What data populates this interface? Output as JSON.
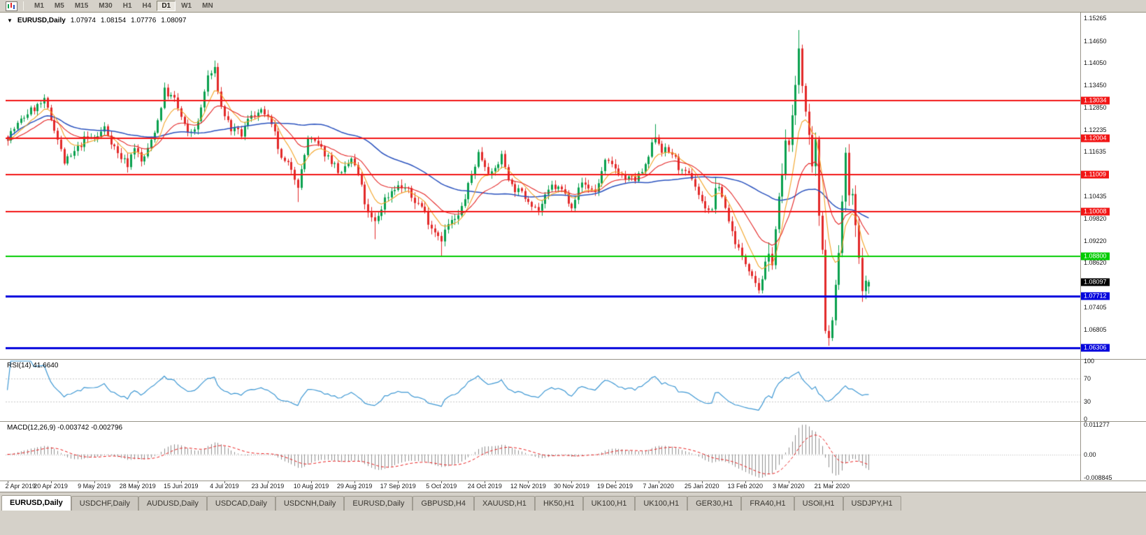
{
  "toolbar": {
    "timeframes": [
      "M1",
      "M5",
      "M15",
      "M30",
      "H1",
      "H4",
      "D1",
      "W1",
      "MN"
    ],
    "active_timeframe": "D1"
  },
  "ohlc_info": {
    "arrow": "▼",
    "symbol_period": "EURUSD,Daily",
    "open": "1.07974",
    "high": "1.08154",
    "low": "1.07776",
    "close": "1.08097"
  },
  "price_axis": {
    "regular_labels": [
      "1.15265",
      "1.14650",
      "1.14050",
      "1.13450",
      "1.12850",
      "1.12235",
      "1.11635",
      "1.10435",
      "1.09820",
      "1.09220",
      "1.08620",
      "1.07405",
      "1.06805"
    ],
    "current_price": "1.08097",
    "current_price_bg": "#000000"
  },
  "levels": [
    {
      "label": "1.13034",
      "price": 1.13034,
      "color": "#f21515",
      "width": 2
    },
    {
      "label": "1.12004",
      "price": 1.12004,
      "color": "#f21515",
      "width": 2
    },
    {
      "label": "1.11009",
      "price": 1.11009,
      "color": "#f21515",
      "width": 2
    },
    {
      "label": "1.10008",
      "price": 1.10008,
      "color": "#f21515",
      "width": 2
    },
    {
      "label": "1.08800",
      "price": 1.088,
      "color": "#00cc00",
      "width": 2
    },
    {
      "label": "1.07712",
      "price": 1.07712,
      "color": "#0404dd",
      "width": 3
    },
    {
      "label": "1.06306",
      "price": 1.06306,
      "color": "#0404dd",
      "width": 3
    }
  ],
  "date_axis": [
    "2 Apr 2019",
    "20 Apr 2019",
    "9 May 2019",
    "28 May 2019",
    "15 Jun 2019",
    "4 Jul 2019",
    "23 Jul 2019",
    "10 Aug 2019",
    "29 Aug 2019",
    "17 Sep 2019",
    "5 Oct 2019",
    "24 Oct 2019",
    "12 Nov 2019",
    "30 Nov 2019",
    "19 Dec 2019",
    "7 Jan 2020",
    "25 Jan 2020",
    "13 Feb 2020",
    "3 Mar 2020",
    "21 Mar 2020"
  ],
  "rsi_panel": {
    "label": "RSI(14) 41.6640",
    "axis_labels": [
      "100",
      "70",
      "30",
      "0"
    ],
    "levels": [
      70,
      30
    ],
    "line_color": "#3d97d3"
  },
  "macd_panel": {
    "label": "MACD(12,26,9) -0.003742 -0.002796",
    "axis_labels": [
      "0.011277",
      "0.00",
      "-0.008845"
    ],
    "axis_max": 0.011277,
    "axis_min": -0.008845,
    "histogram_color": "#8f8f8f",
    "signal_color": "#e81c1c"
  },
  "tabs": {
    "active_index": 0,
    "items": [
      "EURUSD,Daily",
      "USDCHF,Daily",
      "AUDUSD,Daily",
      "USDCAD,Daily",
      "USDCNH,Daily",
      "EURUSD,Daily",
      "GBPUSD,H4",
      "XAUUSD,H1",
      "HK50,H1",
      "UK100,H1",
      "UK100,H1",
      "GER30,H1",
      "FRA40,H1",
      "USOil,H1",
      "USDJPY,H1"
    ],
    "active_label": "EURUSD,Daily"
  },
  "chart_data": {
    "type": "candlestick",
    "symbol": "EURUSD",
    "timeframe": "Daily",
    "visible_dates": [
      "2 Apr 2019",
      "early Apr 2020"
    ],
    "price_axis_range": [
      1.06,
      1.1533
    ],
    "bar_count": 259,
    "last_bar": {
      "open": 1.07974,
      "high": 1.08154,
      "low": 1.07776,
      "close": 1.08097
    },
    "close_anchors": [
      [
        0,
        1.1205
      ],
      [
        6,
        1.127
      ],
      [
        11,
        1.13
      ],
      [
        14,
        1.123
      ],
      [
        17,
        1.1135
      ],
      [
        19,
        1.115
      ],
      [
        23,
        1.1197
      ],
      [
        27,
        1.1205
      ],
      [
        29,
        1.123
      ],
      [
        33,
        1.1158
      ],
      [
        36,
        1.113
      ],
      [
        38,
        1.118
      ],
      [
        40,
        1.1135
      ],
      [
        42,
        1.1168
      ],
      [
        45,
        1.125
      ],
      [
        47,
        1.133
      ],
      [
        50,
        1.1305
      ],
      [
        54,
        1.121
      ],
      [
        57,
        1.124
      ],
      [
        60,
        1.137
      ],
      [
        62,
        1.1385
      ],
      [
        64,
        1.1285
      ],
      [
        67,
        1.1225
      ],
      [
        70,
        1.121
      ],
      [
        73,
        1.1268
      ],
      [
        77,
        1.127
      ],
      [
        80,
        1.121
      ],
      [
        82,
        1.114
      ],
      [
        85,
        1.112
      ],
      [
        87,
        1.1075
      ],
      [
        88,
        1.111
      ],
      [
        90,
        1.12
      ],
      [
        93,
        1.118
      ],
      [
        97,
        1.114
      ],
      [
        100,
        1.11
      ],
      [
        103,
        1.1145
      ],
      [
        105,
        1.11
      ],
      [
        108,
        1.099
      ],
      [
        110,
        1.097
      ],
      [
        113,
        1.1035
      ],
      [
        116,
        1.107
      ],
      [
        119,
        1.1065
      ],
      [
        121,
        1.104
      ],
      [
        124,
        1.1015
      ],
      [
        127,
        1.096
      ],
      [
        130,
        1.093
      ],
      [
        132,
        1.0965
      ],
      [
        135,
        1.0985
      ],
      [
        137,
        1.104
      ],
      [
        141,
        1.116
      ],
      [
        143,
        1.113
      ],
      [
        145,
        1.11
      ],
      [
        148,
        1.1152
      ],
      [
        151,
        1.107
      ],
      [
        156,
        1.1035
      ],
      [
        159,
        1.1005
      ],
      [
        163,
        1.107
      ],
      [
        166,
        1.106
      ],
      [
        169,
        1.102
      ],
      [
        172,
        1.108
      ],
      [
        176,
        1.1055
      ],
      [
        179,
        1.1135
      ],
      [
        182,
        1.112
      ],
      [
        185,
        1.109
      ],
      [
        188,
        1.1088
      ],
      [
        191,
        1.112
      ],
      [
        194,
        1.121
      ],
      [
        196,
        1.117
      ],
      [
        199,
        1.116
      ],
      [
        202,
        1.1105
      ],
      [
        205,
        1.1095
      ],
      [
        208,
        1.1025
      ],
      [
        211,
        1.1
      ],
      [
        212,
        1.107
      ],
      [
        214,
        1.1045
      ],
      [
        217,
        1.0945
      ],
      [
        220,
        1.0875
      ],
      [
        223,
        1.0835
      ],
      [
        225,
        1.079
      ],
      [
        227,
        1.0855
      ],
      [
        229,
        1.088
      ],
      [
        231,
        1.1025
      ],
      [
        233,
        1.1175
      ],
      [
        235,
        1.124
      ],
      [
        237,
        1.145
      ],
      [
        239,
        1.127
      ],
      [
        240,
        1.1185
      ],
      [
        241,
        1.1105
      ],
      [
        242,
        1.118
      ],
      [
        243,
        1.0995
      ],
      [
        244,
        1.0915
      ],
      [
        245,
        1.069
      ],
      [
        246,
        1.0655
      ],
      [
        247,
        1.0725
      ],
      [
        248,
        1.079
      ],
      [
        249,
        1.088
      ],
      [
        250,
        1.103
      ],
      [
        251,
        1.114
      ],
      [
        252,
        1.1047
      ],
      [
        253,
        1.103
      ],
      [
        254,
        1.096
      ],
      [
        255,
        1.086
      ],
      [
        256,
        1.081
      ],
      [
        257,
        1.0797
      ],
      [
        258,
        1.08097
      ]
    ],
    "extremes": [
      [
        11,
        "high",
        1.132
      ],
      [
        36,
        "low",
        1.1107
      ],
      [
        48,
        "high",
        1.1348
      ],
      [
        62,
        "high",
        1.1412
      ],
      [
        87,
        "low",
        1.1027
      ],
      [
        110,
        "low",
        1.0926
      ],
      [
        130,
        "low",
        1.0879
      ],
      [
        194,
        "high",
        1.1239
      ],
      [
        212,
        "high",
        1.1095
      ],
      [
        225,
        "low",
        1.0778
      ],
      [
        237,
        "high",
        1.1495
      ],
      [
        246,
        "low",
        1.0636
      ],
      [
        251,
        "high",
        1.1147
      ]
    ],
    "moving_averages": [
      {
        "type": "SMA",
        "period": 50,
        "color": "#2a52be"
      },
      {
        "type": "EMA",
        "period": 20,
        "color": "#e42525"
      },
      {
        "type": "EMA",
        "period": 8,
        "color": "#f2a325"
      }
    ],
    "volatility_regions": [
      [
        105,
        135,
        1.2
      ],
      [
        228,
        258,
        2.3
      ]
    ]
  }
}
